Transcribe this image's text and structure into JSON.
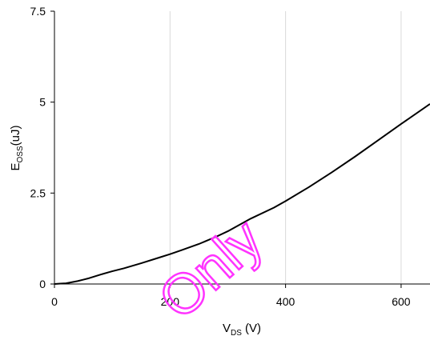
{
  "chart_data": {
    "type": "line",
    "title": "",
    "xlabel": {
      "main": "V",
      "sub": "DS",
      "unit": " (V)"
    },
    "ylabel": {
      "main": "E",
      "sub": "OSS",
      "unit": "(uJ)"
    },
    "xlim": [
      0,
      650
    ],
    "ylim": [
      0,
      7.5
    ],
    "xticks": [
      0,
      200,
      400,
      600
    ],
    "xtick_labels": [
      "0",
      "200",
      "400",
      "600"
    ],
    "yticks": [
      0,
      2.5,
      5,
      7.5
    ],
    "ytick_labels": [
      "0",
      "2.5",
      "5",
      "7.5"
    ],
    "grid": {
      "vertical": true,
      "horizontal": false
    },
    "series": [
      {
        "color": "#000000",
        "x": [
          0,
          10,
          20,
          30,
          40,
          50,
          60,
          80,
          100,
          120,
          150,
          180,
          200,
          220,
          250,
          280,
          300,
          340,
          380,
          400,
          440,
          480,
          520,
          560,
          600,
          650
        ],
        "y": [
          0,
          0.01,
          0.02,
          0.05,
          0.08,
          0.12,
          0.16,
          0.26,
          0.35,
          0.43,
          0.57,
          0.72,
          0.82,
          0.93,
          1.1,
          1.3,
          1.45,
          1.8,
          2.1,
          2.28,
          2.66,
          3.07,
          3.5,
          3.95,
          4.4,
          4.95
        ]
      }
    ]
  },
  "watermark": {
    "text": "Only",
    "color": "#ff33ff"
  }
}
